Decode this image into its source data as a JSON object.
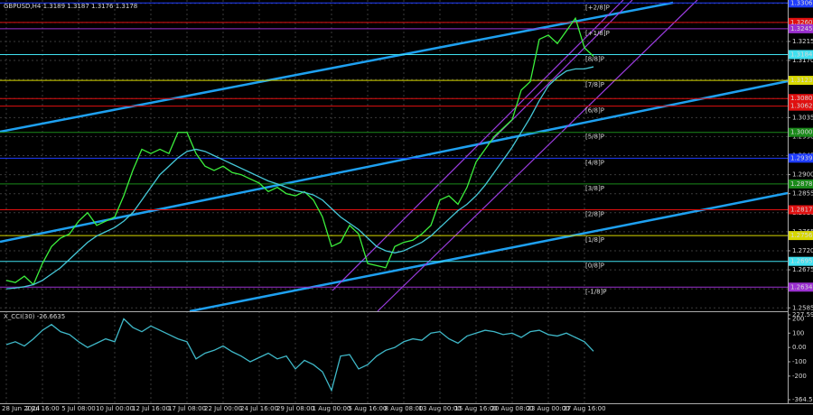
{
  "chart_data": [
    {
      "type": "line",
      "title": "GBPUSD,H4 1.3189 1.3187 1.3176 1.3178",
      "categories": [
        "28 Jun 2024",
        null,
        null,
        null,
        "2 Jul 16:00",
        null,
        null,
        null,
        "5 Jul 08:00",
        null,
        null,
        null,
        "10 Jul 00:00",
        null,
        null,
        null,
        "12 Jul 16:00",
        null,
        null,
        null,
        "17 Jul 08:00",
        null,
        null,
        null,
        "22 Jul 00:00",
        null,
        null,
        null,
        "24 Jul 16:00",
        null,
        null,
        null,
        "29 Jul 08:00",
        null,
        null,
        null,
        "1 Aug 00:00",
        null,
        null,
        null,
        "5 Aug 16:00",
        null,
        null,
        null,
        "8 Aug 08:00",
        null,
        null,
        null,
        "13 Aug 00:00",
        null,
        null,
        null,
        "15 Aug 16:00",
        null,
        null,
        null,
        "20 Aug 08:00",
        null,
        null,
        null,
        "23 Aug 00:00",
        null,
        null,
        null,
        "27 Aug 16:00",
        null
      ],
      "series": [
        {
          "color": "#3cf03c",
          "values": [
            1.265,
            1.2645,
            1.266,
            1.264,
            1.269,
            1.273,
            1.275,
            1.276,
            1.279,
            1.281,
            1.278,
            1.279,
            1.28,
            1.285,
            1.291,
            1.296,
            1.295,
            1.296,
            1.295,
            1.3,
            1.3,
            1.295,
            1.292,
            1.291,
            1.292,
            1.2905,
            1.29,
            1.289,
            1.288,
            1.286,
            1.287,
            1.2855,
            1.285,
            1.286,
            1.284,
            1.28,
            1.273,
            1.274,
            1.278,
            1.276,
            1.269,
            1.2685,
            1.268,
            1.273,
            1.274,
            1.2745,
            1.276,
            1.278,
            1.284,
            1.285,
            1.283,
            1.287,
            1.293,
            1.296,
            1.299,
            1.301,
            1.303,
            1.31,
            1.312,
            1.322,
            1.323,
            1.321,
            1.324,
            1.327,
            1.32,
            1.318
          ]
        },
        {
          "color": "#45c8d8",
          "values": [
            1.263,
            1.2632,
            1.2635,
            1.264,
            1.265,
            1.2665,
            1.268,
            1.27,
            1.272,
            1.274,
            1.2755,
            1.2765,
            1.2775,
            1.279,
            1.281,
            1.284,
            1.287,
            1.29,
            1.292,
            1.294,
            1.2955,
            1.296,
            1.2955,
            1.2945,
            1.2935,
            1.2925,
            1.2915,
            1.2905,
            1.2895,
            1.2885,
            1.2878,
            1.287,
            1.2862,
            1.2858,
            1.2852,
            1.284,
            1.282,
            1.28,
            1.2785,
            1.277,
            1.275,
            1.273,
            1.272,
            1.2715,
            1.272,
            1.273,
            1.274,
            1.2755,
            1.2775,
            1.2795,
            1.2815,
            1.283,
            1.285,
            1.2875,
            1.2905,
            1.2935,
            1.2965,
            1.3,
            1.3035,
            1.3075,
            1.311,
            1.313,
            1.3145,
            1.315,
            1.315,
            1.3155
          ]
        }
      ],
      "ylim": [
        1.2577,
        1.3313
      ],
      "yticks": [
        1.2585,
        {
          "value": 1.263,
          "label": "1.2630"
        },
        1.2675,
        {
          "value": 1.272,
          "label": "1.2720"
        },
        1.2765,
        {
          "value": 1.281,
          "label": "1.2810"
        },
        1.2855,
        {
          "value": 1.29,
          "label": "1.2900"
        },
        1.2945,
        {
          "value": 1.299,
          "label": "1.2990"
        },
        1.3035,
        {
          "value": 1.308,
          "label": "1.3080"
        },
        1.3125,
        {
          "value": 1.317,
          "label": "1.3170"
        },
        1.3215,
        {
          "value": 1.326,
          "label": "1.3260"
        },
        1.3305
      ],
      "grid": true,
      "levels": [
        {
          "value": 1.3306,
          "label": "1.3306",
          "color": "#1e3cff",
          "murray": "[+2/8]P"
        },
        {
          "value": 1.326,
          "label": "1.3260",
          "color": "#e01010"
        },
        {
          "value": 1.3245,
          "label": "1.3245",
          "color": "#9b30d0",
          "murray": "[+1/8]P"
        },
        {
          "value": 1.3184,
          "label": "1.3184",
          "color": "#40e0f0",
          "murray": "[8/8]P"
        },
        {
          "value": 1.3123,
          "label": "1.3123",
          "color": "#d8d800",
          "murray": "[7/8]P"
        },
        {
          "value": 1.308,
          "label": "1.3080",
          "color": "#e01010"
        },
        {
          "value": 1.3062,
          "label": "1.3062",
          "color": "#e01010",
          "murray": "[6/8]P"
        },
        {
          "value": 1.3,
          "label": "1.3000",
          "color": "#1a8a1a",
          "murray": "[5/8]P"
        },
        {
          "value": 1.2939,
          "label": "1.2939",
          "color": "#1e3cff",
          "murray": "[4/8]P"
        },
        {
          "value": 1.2878,
          "label": "1.2878",
          "color": "#1a8a1a",
          "murray": "[3/8]P"
        },
        {
          "value": 1.2817,
          "label": "1.2817",
          "color": "#e01010",
          "murray": "[2/8]P"
        },
        {
          "value": 1.2756,
          "label": "1.2756",
          "color": "#d8d800",
          "murray": "[1/8]P"
        },
        {
          "value": 1.2695,
          "label": "1.2695",
          "color": "#40e0f0",
          "murray": "[0/8]P"
        },
        {
          "value": 1.2634,
          "label": "1.2634",
          "color": "#9b30d0",
          "murray": "[-1/8]P"
        }
      ]
    },
    {
      "type": "line",
      "title": "X_CCI(30) -26.6635",
      "series": [
        {
          "color": "#3fb8c8",
          "values": [
            20,
            40,
            10,
            60,
            120,
            160,
            110,
            90,
            40,
            0,
            30,
            60,
            40,
            200,
            140,
            110,
            150,
            120,
            90,
            60,
            40,
            -80,
            -40,
            -20,
            10,
            -30,
            -60,
            -100,
            -70,
            -40,
            -80,
            -60,
            -150,
            -90,
            -120,
            -170,
            -300,
            -60,
            -50,
            -150,
            -120,
            -60,
            -20,
            0,
            40,
            60,
            50,
            100,
            110,
            60,
            30,
            80,
            100,
            120,
            110,
            90,
            100,
            70,
            110,
            120,
            90,
            80,
            100,
            70,
            40,
            -26.6635
          ]
        }
      ],
      "ylim": [
        -364.558,
        227.592
      ],
      "yticks": [
        227.592,
        200,
        100,
        {
          "value": 0,
          "label": "0.00"
        },
        -100,
        -200,
        -364.558
      ]
    }
  ]
}
